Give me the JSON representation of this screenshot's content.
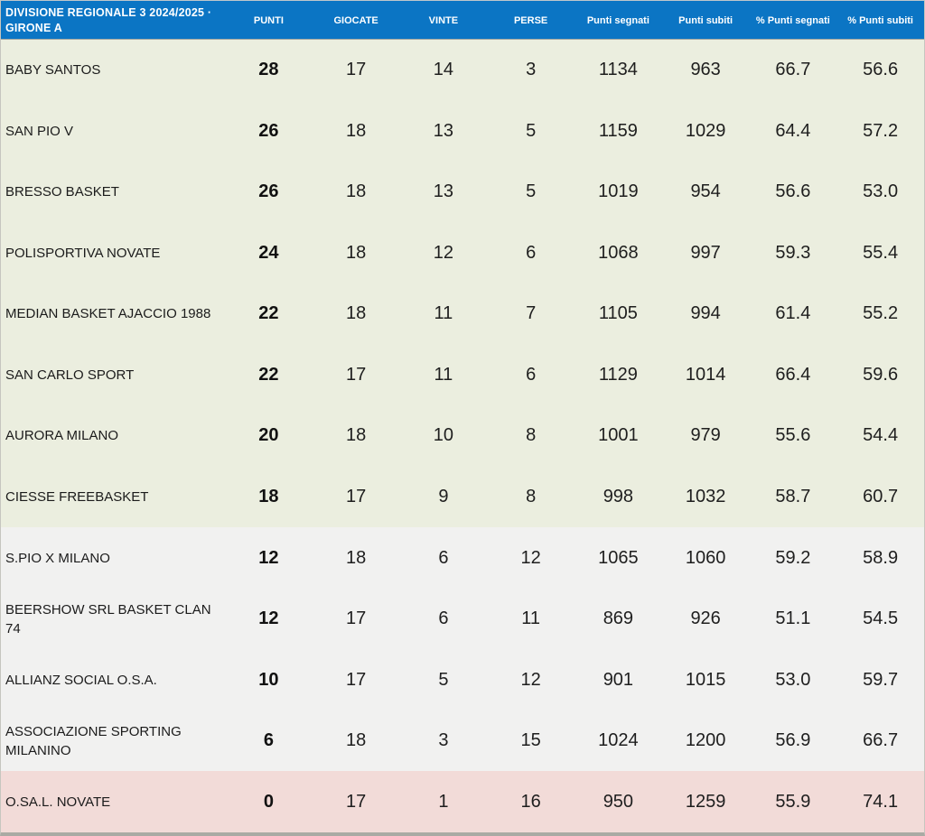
{
  "table": {
    "title": {
      "line1": "DIVISIONE REGIONALE 3  2024/2025 ·",
      "line2": "GIRONE A"
    },
    "columns": [
      "PUNTI",
      "GIOCATE",
      "VINTE",
      "PERSE",
      "Punti segnati",
      "Punti subiti",
      "% Punti segnati",
      "% Punti subiti"
    ],
    "rows": [
      {
        "team": "BABY SANTOS",
        "values": [
          "28",
          "17",
          "14",
          "3",
          "1134",
          "963",
          "66.7",
          "56.6"
        ],
        "zone": "top"
      },
      {
        "team": "SAN PIO V",
        "values": [
          "26",
          "18",
          "13",
          "5",
          "1159",
          "1029",
          "64.4",
          "57.2"
        ],
        "zone": "top"
      },
      {
        "team": "BRESSO BASKET",
        "values": [
          "26",
          "18",
          "13",
          "5",
          "1019",
          "954",
          "56.6",
          "53.0"
        ],
        "zone": "top"
      },
      {
        "team": "POLISPORTIVA NOVATE",
        "values": [
          "24",
          "18",
          "12",
          "6",
          "1068",
          "997",
          "59.3",
          "55.4"
        ],
        "zone": "top"
      },
      {
        "team": "MEDIAN BASKET AJACCIO 1988",
        "values": [
          "22",
          "18",
          "11",
          "7",
          "1105",
          "994",
          "61.4",
          "55.2"
        ],
        "zone": "top"
      },
      {
        "team": "SAN CARLO SPORT",
        "values": [
          "22",
          "17",
          "11",
          "6",
          "1129",
          "1014",
          "66.4",
          "59.6"
        ],
        "zone": "top"
      },
      {
        "team": "AURORA MILANO",
        "values": [
          "20",
          "18",
          "10",
          "8",
          "1001",
          "979",
          "55.6",
          "54.4"
        ],
        "zone": "top"
      },
      {
        "team": "CIESSE FREEBASKET",
        "values": [
          "18",
          "17",
          "9",
          "8",
          "998",
          "1032",
          "58.7",
          "60.7"
        ],
        "zone": "top"
      },
      {
        "team": "S.PIO X MILANO",
        "values": [
          "12",
          "18",
          "6",
          "12",
          "1065",
          "1060",
          "59.2",
          "58.9"
        ],
        "zone": "mid"
      },
      {
        "team": "BEERSHOW SRL BASKET CLAN 74",
        "values": [
          "12",
          "17",
          "6",
          "11",
          "869",
          "926",
          "51.1",
          "54.5"
        ],
        "zone": "mid"
      },
      {
        "team": "ALLIANZ SOCIAL O.S.A.",
        "values": [
          "10",
          "17",
          "5",
          "12",
          "901",
          "1015",
          "53.0",
          "59.7"
        ],
        "zone": "mid"
      },
      {
        "team": "ASSOCIAZIONE SPORTING MILANINO",
        "values": [
          "6",
          "18",
          "3",
          "15",
          "1024",
          "1200",
          "56.9",
          "66.7"
        ],
        "zone": "mid"
      },
      {
        "team": "O.SA.L. NOVATE",
        "values": [
          "0",
          "17",
          "1",
          "16",
          "950",
          "1259",
          "55.9",
          "74.1"
        ],
        "zone": "bottom"
      }
    ]
  },
  "colors": {
    "header_bg": "#0b75c4",
    "header_text": "#ffffff",
    "zone_top_bg": "#ebeedf",
    "zone_mid_bg": "#f1f1f0",
    "zone_bottom_bg": "#f2dbd8"
  }
}
